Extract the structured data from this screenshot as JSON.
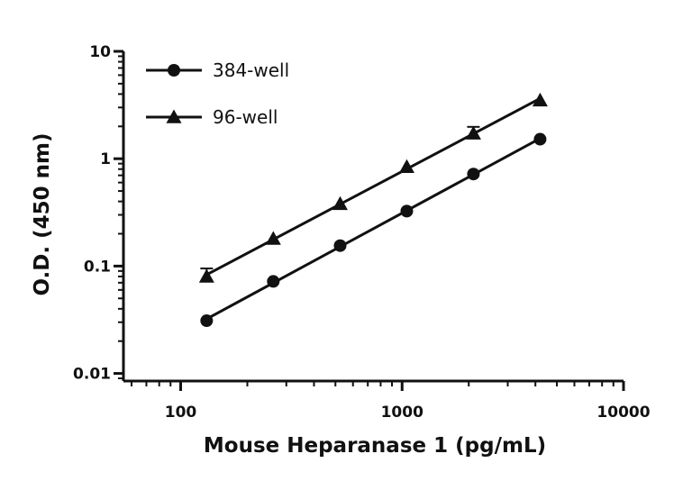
{
  "chart_data": {
    "type": "line",
    "xlabel": "Mouse Heparanase 1 (pg/mL)",
    "ylabel": "O.D. (450 nm)",
    "xscale": "log",
    "yscale": "log",
    "xlim": [
      60,
      10000
    ],
    "ylim": [
      0.0085,
      10
    ],
    "xticks": [
      100,
      1000,
      10000
    ],
    "xtick_labels": [
      "100",
      "1000",
      "10000"
    ],
    "yticks": [
      0.01,
      0.1,
      1,
      10
    ],
    "ytick_labels": [
      "0.01",
      "0.1",
      "1",
      "10"
    ],
    "grid": false,
    "legend_position": "top-left",
    "series": [
      {
        "name": "384-well",
        "marker": "circle",
        "color": "#111111",
        "x": [
          131,
          262,
          525,
          1050,
          2100,
          4200
        ],
        "y": [
          0.031,
          0.072,
          0.155,
          0.325,
          0.72,
          1.52
        ]
      },
      {
        "name": "96-well",
        "marker": "triangle",
        "color": "#111111",
        "x": [
          131,
          262,
          525,
          1050,
          2100,
          4200
        ],
        "y": [
          0.08,
          0.18,
          0.38,
          0.84,
          1.72,
          3.5
        ],
        "error_upper": [
          0.095,
          null,
          null,
          null,
          1.98,
          null
        ]
      }
    ]
  }
}
